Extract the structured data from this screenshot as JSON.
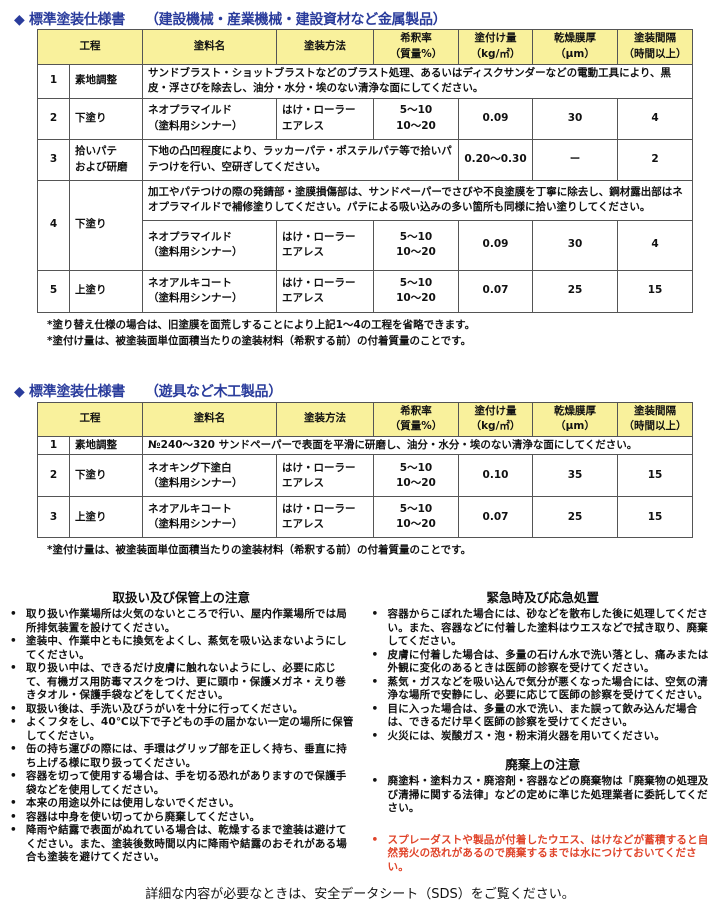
{
  "table1": {
    "title": "◆ 標準塗装仕様書",
    "subtitle": "（建設機械・産業機械・建設資材など金属製品）",
    "headers": [
      "工程",
      "塗料名",
      "塗装方法",
      "希釈率\n（質量%）",
      "塗付け量\n（kg/㎡）",
      "乾燥膜厚\n（μm）",
      "塗装間隔\n（時間以上）"
    ],
    "rows": [
      {
        "no": "1",
        "step": "素地調整",
        "desc": "サンドブラスト・ショットブラストなどのブラスト処理、あるいはディスクサンダーなどの電動工具により、黒皮・浮さびを除去し、油分・水分・埃のない清浄な面にしてください。"
      },
      {
        "no": "2",
        "step": "下塗り",
        "paint": "ネオプラマイルド\n（塗料用シンナー）",
        "method": "はけ・ローラー\nエアレス",
        "dilution": "5～10\n10～20",
        "amount": "0.09",
        "thickness": "30",
        "interval": "4"
      },
      {
        "no": "3",
        "step": "拾いパテ\nおよび研磨",
        "desc": "下地の凸凹程度により、ラッカーパテ・ポステルパテ等で拾いパテつけを行い、空研ぎしてください。",
        "amount": "0.20～0.30",
        "thickness": "ー",
        "interval": "2"
      },
      {
        "no": "4",
        "step": "下塗り",
        "desc": "加工やパテつけの際の発錆部・塗膜損傷部は、サンドペーパーでさびや不良塗膜を丁寧に除去し、鋼材露出部はネオプラマイルドで補修塗りしてください。パテによる吸い込みの多い箇所も同様に拾い塗りしてください。",
        "paint": "ネオプラマイルド\n（塗料用シンナー）",
        "method": "はけ・ローラー\nエアレス",
        "dilution": "5～10\n10～20",
        "amount": "0.09",
        "thickness": "30",
        "interval": "4"
      },
      {
        "no": "5",
        "step": "上塗り",
        "paint": "ネオアルキコート\n（塗料用シンナー）",
        "method": "はけ・ローラー\nエアレス",
        "dilution": "5～10\n10～20",
        "amount": "0.07",
        "thickness": "25",
        "interval": "15"
      }
    ],
    "notes": [
      "*塗り替え仕様の場合は、旧塗膜を面荒しすることにより上記1～4の工程を省略できます。",
      "*塗付け量は、被塗装面単位面積当たりの塗装材料（希釈する前）の付着質量のことです。"
    ]
  },
  "table2": {
    "title": "◆ 標準塗装仕様書",
    "subtitle": "（遊具など木工製品）",
    "headers": [
      "工程",
      "塗料名",
      "塗装方法",
      "希釈率\n（質量%）",
      "塗付け量\n（kg/㎡）",
      "乾燥膜厚\n（μm）",
      "塗装間隔\n（時間以上）"
    ],
    "rows": [
      {
        "no": "1",
        "step": "素地調整",
        "desc": "№240～320 サンドペーパーで表面を平滑に研磨し、油分・水分・埃のない清浄な面にしてください。"
      },
      {
        "no": "2",
        "step": "下塗り",
        "paint": "ネオキング下塗白\n（塗料用シンナー）",
        "method": "はけ・ローラー\nエアレス",
        "dilution": "5～10\n10～20",
        "amount": "0.10",
        "thickness": "35",
        "interval": "15"
      },
      {
        "no": "3",
        "step": "上塗り",
        "paint": "ネオアルキコート\n（塗料用シンナー）",
        "method": "はけ・ローラー\nエアレス",
        "dilution": "5～10\n10～20",
        "amount": "0.07",
        "thickness": "25",
        "interval": "15"
      }
    ],
    "notes": [
      "*塗付け量は、被塗装面単位面積当たりの塗装材料（希釈する前）の付着質量のことです。"
    ]
  },
  "handling": {
    "title": "取扱い及び保管上の注意",
    "items": [
      "取り扱い作業場所は火気のないところで行い、屋内作業場所では局所排気装置を設けてください。",
      "塗装中、作業中ともに換気をよくし、蒸気を吸い込まないようにしてください。",
      "取り扱い中は、できるだけ皮膚に触れないようにし、必要に応じて、有機ガス用防毒マスクをつけ、更に頭巾・保護メガネ・えり巻きタオル・保護手袋などをしてください。",
      "取扱い後は、手洗い及びうがいを十分に行ってください。",
      "よくフタをし、40℃以下で子どもの手の届かない一定の場所に保管してください。",
      "缶の持ち運びの際には、手環はグリップ部を正しく持ち、垂直に持ち上げる様に取り扱ってください。",
      "容器を切って使用する場合は、手を切る恐れがありますので保護手袋などを使用してください。",
      "本来の用途以外には使用しないでください。",
      "容器は中身を使い切ってから廃棄してください。",
      "降雨や結露で表面がぬれている場合は、乾燥するまで塗装は避けてください。また、塗装後数時間以内に降雨や結露のおそれがある場合も塗装を避けてください。"
    ]
  },
  "emergency": {
    "title": "緊急時及び応急処置",
    "items": [
      "容器からこぼれた場合には、砂などを散布した後に処理してください。また、容器などに付着した塗料はウエスなどで拭き取り、廃棄してください。",
      "皮膚に付着した場合は、多量の石けん水で洗い落とし、痛みまたは外観に変化のあるときは医師の診察を受けてください。",
      "蒸気・ガスなどを吸い込んで気分が悪くなった場合には、空気の清浄な場所で安静にし、必要に応じて医師の診察を受けてください。",
      "目に入った場合は、多量の水で洗い、また誤って飲み込んだ場合は、できるだけ早く医師の診察を受けてください。",
      "火災には、炭酸ガス・泡・粉末消火器を用いてください。"
    ]
  },
  "disposal": {
    "title": "廃棄上の注意",
    "items": [
      "廃塗料・塗料カス・廃溶剤・容器などの廃棄物は「廃棄物の処理及び清掃に関する法律」などの定めに準じた処理業者に委託してください。"
    ],
    "warning": "スプレーダストや製品が付着したウエス、はけなどが蓄積すると自然発火の恐れがあるので廃棄するまでは水につけておいてください。",
    "warning_color": "#e0442a"
  },
  "footer": "詳細な内容が必要なときは、安全データシート（SDS）をご覧ください。",
  "colors": {
    "title": "#2a3c9c",
    "header_bg": "#f9f19c"
  }
}
